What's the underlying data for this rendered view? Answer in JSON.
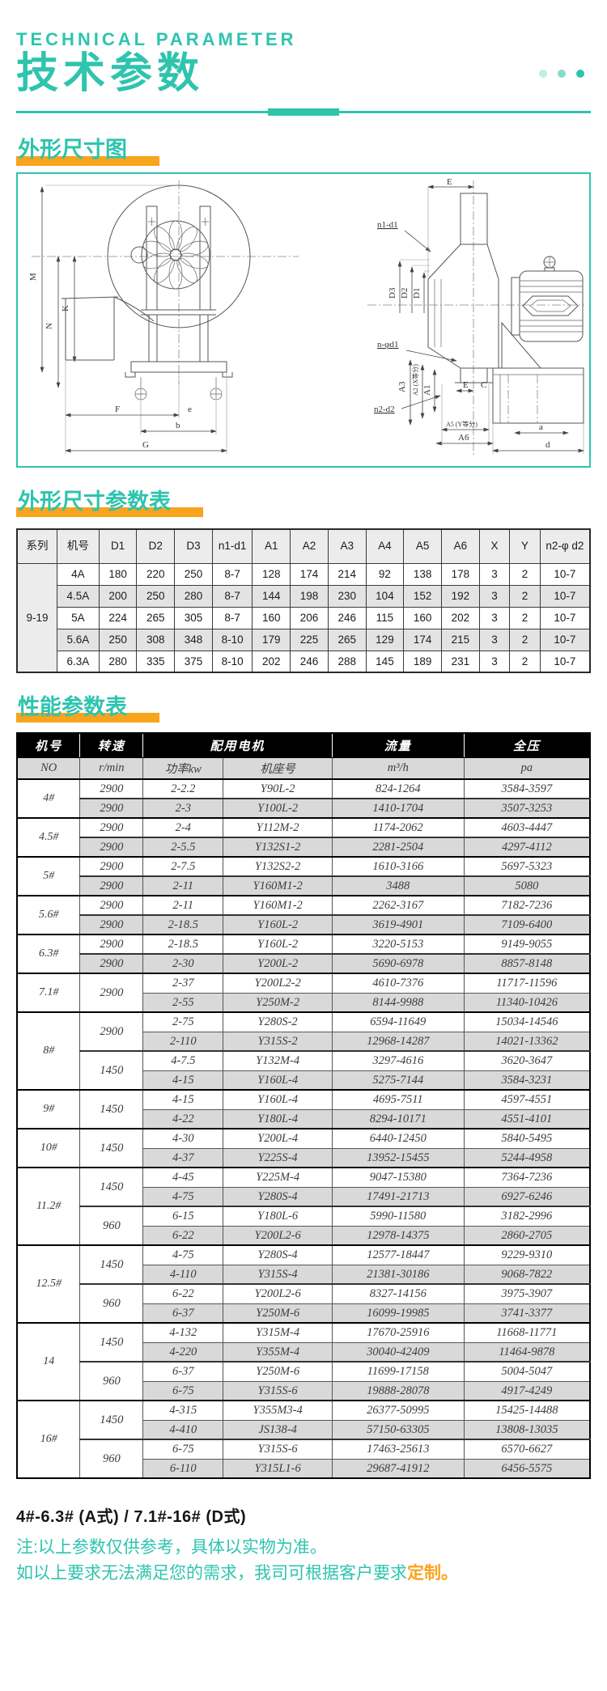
{
  "header": {
    "subtitle": "TECHNICAL PARAMETER",
    "title": "技术参数"
  },
  "sections": {
    "outline_drawing": "外形尺寸图",
    "outline_table": "外形尺寸参数表",
    "performance_table": "性能参数表"
  },
  "diagram": {
    "left": {
      "m": "M",
      "k": "K",
      "n": "N",
      "f": "F",
      "e": "e",
      "b": "b",
      "g": "G"
    },
    "right": {
      "e_top": "E",
      "n1d1": "n1-d1",
      "d3": "D3",
      "d2": "D2",
      "d1": "D1",
      "n_d1": "n-φd1",
      "a3": "A3",
      "a2": "A2 (X等分)",
      "a1": "A1",
      "e2": "E",
      "c": "C",
      "n2d2": "n2-d2",
      "a5": "A5 (Y等分)",
      "a6": "A6",
      "a": "a",
      "d": "d"
    }
  },
  "dim_table": {
    "headers": [
      "系列",
      "机号",
      "D1",
      "D2",
      "D3",
      "n1-d1",
      "A1",
      "A2",
      "A3",
      "A4",
      "A5",
      "A6",
      "X",
      "Y",
      "n2-φ d2"
    ],
    "series": "9-19",
    "rows": [
      [
        "4A",
        "180",
        "220",
        "250",
        "8-7",
        "128",
        "174",
        "214",
        "92",
        "138",
        "178",
        "3",
        "2",
        "10-7"
      ],
      [
        "4.5A",
        "200",
        "250",
        "280",
        "8-7",
        "144",
        "198",
        "230",
        "104",
        "152",
        "192",
        "3",
        "2",
        "10-7"
      ],
      [
        "5A",
        "224",
        "265",
        "305",
        "8-7",
        "160",
        "206",
        "246",
        "115",
        "160",
        "202",
        "3",
        "2",
        "10-7"
      ],
      [
        "5.6A",
        "250",
        "308",
        "348",
        "8-10",
        "179",
        "225",
        "265",
        "129",
        "174",
        "215",
        "3",
        "2",
        "10-7"
      ],
      [
        "6.3A",
        "280",
        "335",
        "375",
        "8-10",
        "202",
        "246",
        "288",
        "145",
        "189",
        "231",
        "3",
        "2",
        "10-7"
      ]
    ]
  },
  "perf_table": {
    "group_headers": [
      "机号",
      "转速",
      "配用电机",
      "流量",
      "全压"
    ],
    "subheaders": [
      "NO",
      "r/min",
      "功率kw",
      "机座号",
      "m³/h",
      "pa"
    ],
    "groups": [
      {
        "no": "4#",
        "blocks": [
          {
            "speed": "2900",
            "rows": [
              [
                "2-2.2",
                "Y90L-2",
                "824-1264",
                "3584-3597"
              ]
            ]
          },
          {
            "speed": "2900",
            "rows": [
              [
                "2-3",
                "Y100L-2",
                "1410-1704",
                "3507-3253"
              ]
            ]
          }
        ]
      },
      {
        "no": "4.5#",
        "blocks": [
          {
            "speed": "2900",
            "rows": [
              [
                "2-4",
                "Y112M-2",
                "1174-2062",
                "4603-4447"
              ]
            ]
          },
          {
            "speed": "2900",
            "rows": [
              [
                "2-5.5",
                "Y132S1-2",
                "2281-2504",
                "4297-4112"
              ]
            ]
          }
        ]
      },
      {
        "no": "5#",
        "blocks": [
          {
            "speed": "2900",
            "rows": [
              [
                "2-7.5",
                "Y132S2-2",
                "1610-3166",
                "5697-5323"
              ]
            ]
          },
          {
            "speed": "2900",
            "rows": [
              [
                "2-11",
                "Y160M1-2",
                "3488",
                "5080"
              ]
            ]
          }
        ]
      },
      {
        "no": "5.6#",
        "blocks": [
          {
            "speed": "2900",
            "rows": [
              [
                "2-11",
                "Y160M1-2",
                "2262-3167",
                "7182-7236"
              ]
            ]
          },
          {
            "speed": "2900",
            "rows": [
              [
                "2-18.5",
                "Y160L-2",
                "3619-4901",
                "7109-6400"
              ]
            ]
          }
        ]
      },
      {
        "no": "6.3#",
        "blocks": [
          {
            "speed": "2900",
            "rows": [
              [
                "2-18.5",
                "Y160L-2",
                "3220-5153",
                "9149-9055"
              ]
            ]
          },
          {
            "speed": "2900",
            "rows": [
              [
                "2-30",
                "Y200L-2",
                "5690-6978",
                "8857-8148"
              ]
            ]
          }
        ]
      },
      {
        "no": "7.1#",
        "blocks": [
          {
            "speed": "2900",
            "rows": [
              [
                "2-37",
                "Y200L2-2",
                "4610-7376",
                "11717-11596"
              ],
              [
                "2-55",
                "Y250M-2",
                "8144-9988",
                "11340-10426"
              ]
            ]
          }
        ]
      },
      {
        "no": "8#",
        "blocks": [
          {
            "speed": "2900",
            "rows": [
              [
                "2-75",
                "Y280S-2",
                "6594-11649",
                "15034-14546"
              ],
              [
                "2-110",
                "Y315S-2",
                "12968-14287",
                "14021-13362"
              ]
            ]
          },
          {
            "speed": "1450",
            "rows": [
              [
                "4-7.5",
                "Y132M-4",
                "3297-4616",
                "3620-3647"
              ],
              [
                "4-15",
                "Y160L-4",
                "5275-7144",
                "3584-3231"
              ]
            ]
          }
        ]
      },
      {
        "no": "9#",
        "blocks": [
          {
            "speed": "1450",
            "rows": [
              [
                "4-15",
                "Y160L-4",
                "4695-7511",
                "4597-4551"
              ],
              [
                "4-22",
                "Y180L-4",
                "8294-10171",
                "4551-4101"
              ]
            ]
          }
        ]
      },
      {
        "no": "10#",
        "blocks": [
          {
            "speed": "1450",
            "rows": [
              [
                "4-30",
                "Y200L-4",
                "6440-12450",
                "5840-5495"
              ],
              [
                "4-37",
                "Y225S-4",
                "13952-15455",
                "5244-4958"
              ]
            ]
          }
        ]
      },
      {
        "no": "11.2#",
        "blocks": [
          {
            "speed": "1450",
            "rows": [
              [
                "4-45",
                "Y225M-4",
                "9047-15380",
                "7364-7236"
              ],
              [
                "4-75",
                "Y280S-4",
                "17491-21713",
                "6927-6246"
              ]
            ]
          },
          {
            "speed": "960",
            "rows": [
              [
                "6-15",
                "Y180L-6",
                "5990-11580",
                "3182-2996"
              ],
              [
                "6-22",
                "Y200L2-6",
                "12978-14375",
                "2860-2705"
              ]
            ]
          }
        ]
      },
      {
        "no": "12.5#",
        "blocks": [
          {
            "speed": "1450",
            "rows": [
              [
                "4-75",
                "Y280S-4",
                "12577-18447",
                "9229-9310"
              ],
              [
                "4-110",
                "Y315S-4",
                "21381-30186",
                "9068-7822"
              ]
            ]
          },
          {
            "speed": "960",
            "rows": [
              [
                "6-22",
                "Y200L2-6",
                "8327-14156",
                "3975-3907"
              ],
              [
                "6-37",
                "Y250M-6",
                "16099-19985",
                "3741-3377"
              ]
            ]
          }
        ]
      },
      {
        "no": "14",
        "blocks": [
          {
            "speed": "1450",
            "rows": [
              [
                "4-132",
                "Y315M-4",
                "17670-25916",
                "11668-11771"
              ],
              [
                "4-220",
                "Y355M-4",
                "30040-42409",
                "11464-9878"
              ]
            ]
          },
          {
            "speed": "960",
            "rows": [
              [
                "6-37",
                "Y250M-6",
                "11699-17158",
                "5004-5047"
              ],
              [
                "6-75",
                "Y315S-6",
                "19888-28078",
                "4917-4249"
              ]
            ]
          }
        ]
      },
      {
        "no": "16#",
        "blocks": [
          {
            "speed": "1450",
            "rows": [
              [
                "4-315",
                "Y355M3-4",
                "26377-50995",
                "15425-14488"
              ],
              [
                "4-410",
                "JS138-4",
                "57150-63305",
                "13808-13035"
              ]
            ]
          },
          {
            "speed": "960",
            "rows": [
              [
                "6-75",
                "Y315S-6",
                "17463-25613",
                "6570-6627"
              ],
              [
                "6-110",
                "Y315L1-6",
                "29687-41912",
                "6456-5575"
              ]
            ]
          }
        ]
      }
    ]
  },
  "footer": {
    "models": "4#-6.3# (A式) / 7.1#-16# (D式)",
    "note1": "注:以上参数仅供参考，具体以实物为准。",
    "note2_prefix": "如以上要求无法满足您的需求，我司可根据客户要求",
    "note2_highlight": "定制",
    "note2_suffix": "。"
  }
}
